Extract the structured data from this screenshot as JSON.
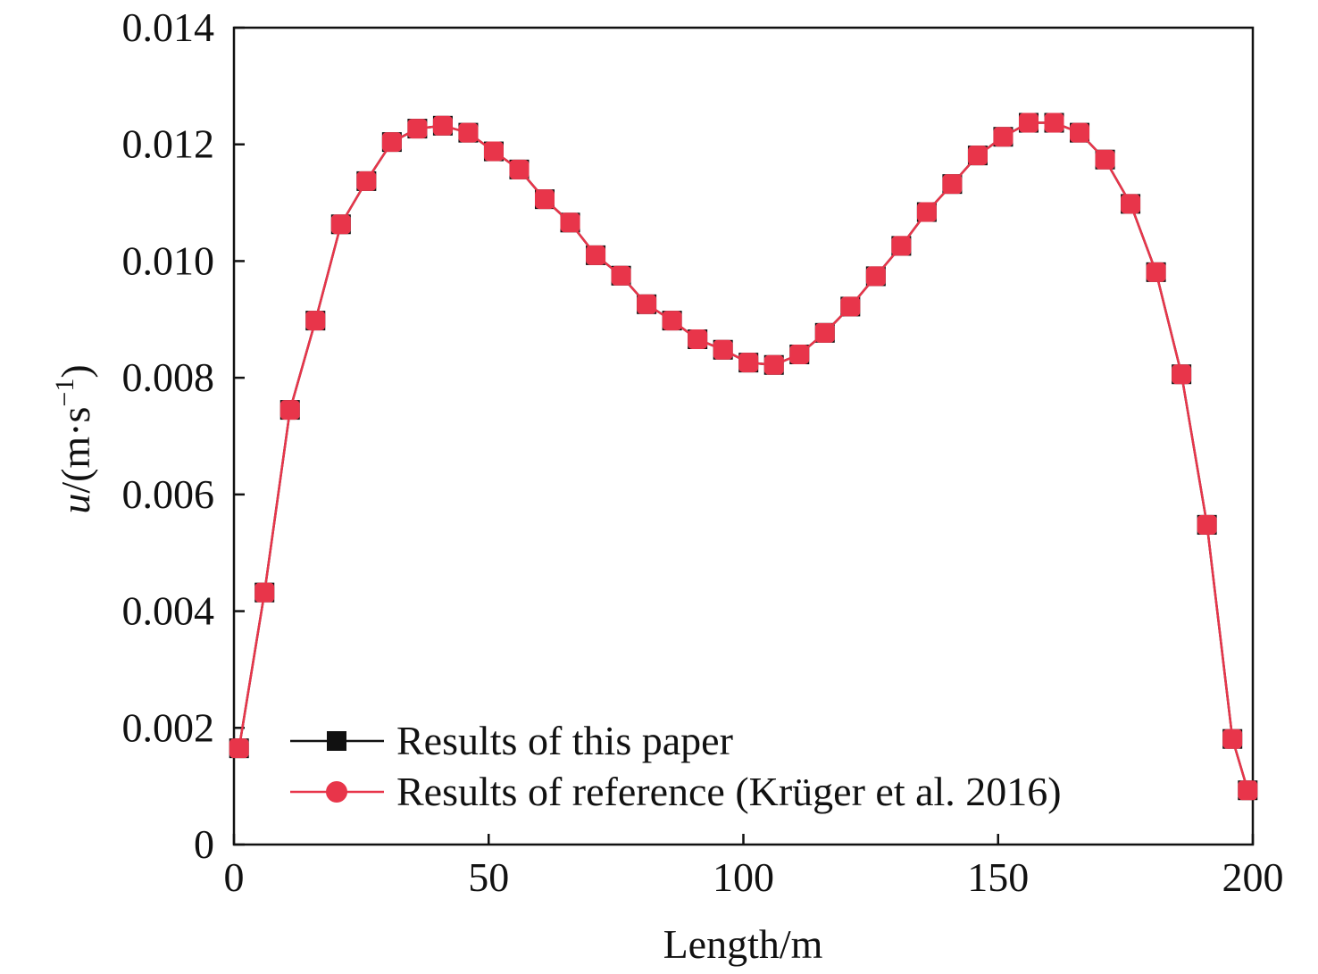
{
  "chart_data": {
    "type": "line",
    "title": "",
    "xlabel": "Length/m",
    "ylabel": {
      "italic": "u",
      "rest": "/(m·s",
      "sup": "−1",
      "close": ")"
    },
    "xlim": [
      0,
      200
    ],
    "ylim": [
      0,
      0.014
    ],
    "xticks": [
      "0",
      "50",
      "100",
      "150",
      "200"
    ],
    "yticks": [
      "0",
      "0.002",
      "0.004",
      "0.006",
      "0.008",
      "0.010",
      "0.012",
      "0.014"
    ],
    "grid": false,
    "legend_position": "bottom-left",
    "x": [
      1,
      6,
      11,
      16,
      21,
      26,
      31,
      36,
      41,
      46,
      51,
      56,
      61,
      66,
      71,
      76,
      81,
      86,
      91,
      96,
      101,
      106,
      111,
      116,
      121,
      126,
      131,
      136,
      141,
      146,
      151,
      156,
      161,
      166,
      171,
      176,
      181,
      186,
      191,
      196,
      199
    ],
    "series": [
      {
        "name": "Results of this paper",
        "color": "#111111",
        "marker": "square",
        "values": [
          0.00165,
          0.00432,
          0.00745,
          0.00898,
          0.01063,
          0.01137,
          0.01204,
          0.01227,
          0.01232,
          0.0122,
          0.01188,
          0.01157,
          0.01106,
          0.01066,
          0.0101,
          0.00975,
          0.00926,
          0.00898,
          0.00866,
          0.00848,
          0.00826,
          0.00822,
          0.0084,
          0.00877,
          0.00922,
          0.00974,
          0.01026,
          0.01084,
          0.01132,
          0.01181,
          0.01213,
          0.01237,
          0.01237,
          0.0122,
          0.01174,
          0.01098,
          0.00981,
          0.00806,
          0.00548,
          0.00181,
          0.00093
        ]
      },
      {
        "name": "Results of reference (Krüger et al. 2016)",
        "color": "#e8354a",
        "marker": "circle",
        "values": [
          0.00165,
          0.00432,
          0.00745,
          0.00898,
          0.01063,
          0.01137,
          0.01204,
          0.01227,
          0.01232,
          0.0122,
          0.01188,
          0.01157,
          0.01106,
          0.01066,
          0.0101,
          0.00975,
          0.00926,
          0.00898,
          0.00866,
          0.00848,
          0.00826,
          0.00822,
          0.0084,
          0.00877,
          0.00922,
          0.00974,
          0.01026,
          0.01084,
          0.01132,
          0.01181,
          0.01213,
          0.01237,
          0.01237,
          0.0122,
          0.01174,
          0.01098,
          0.00981,
          0.00806,
          0.00548,
          0.00181,
          0.00093
        ]
      }
    ]
  }
}
